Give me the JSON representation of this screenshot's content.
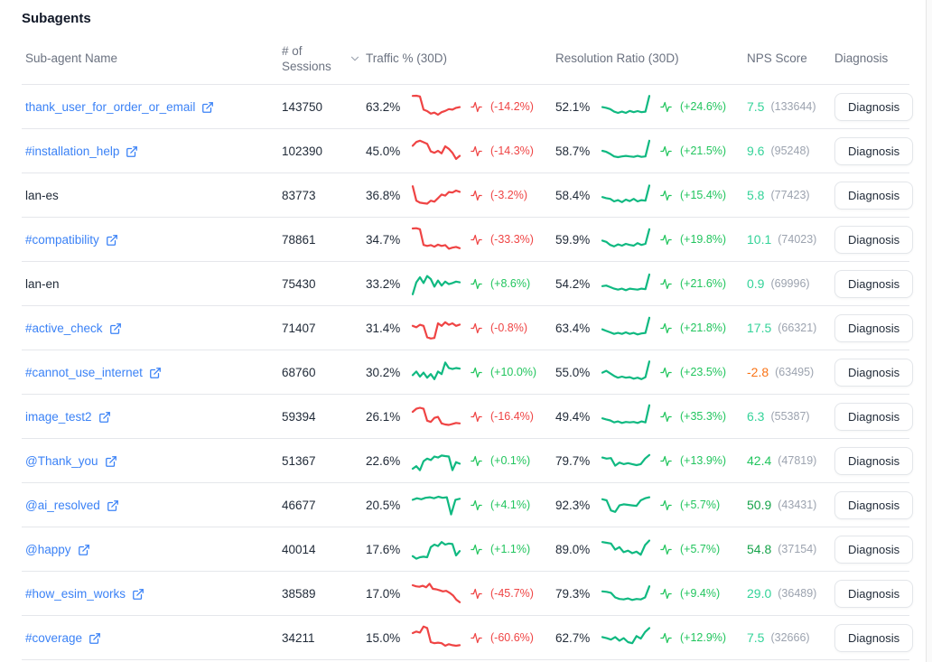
{
  "page": {
    "title": "Subagents"
  },
  "colors": {
    "link": "#3b82f6",
    "up": "#22c55e",
    "down": "#ef4444",
    "spark_up": "#10b981",
    "spark_down": "#ef4444",
    "nps_light_green": "#34d399",
    "nps_medium_green": "#22c55e",
    "nps_dark_green": "#16a34a",
    "nps_orange": "#f97316"
  },
  "table": {
    "headers": {
      "name": "Sub-agent Name",
      "sessions": "# of Sessions",
      "traffic": "Traffic % (30D)",
      "resolution": "Resolution Ratio (30D)",
      "nps": "NPS Score",
      "diagnosis": "Diagnosis"
    },
    "diagnosis_button_label": "Diagnosis",
    "rows": [
      {
        "name": "thank_user_for_order_or_email",
        "linked": true,
        "sessions": "143750",
        "traffic": {
          "value": "63.2%",
          "delta": "(-14.2%)",
          "trend": "down",
          "spark": [
            92,
            93,
            90,
            38,
            32,
            22,
            26,
            18,
            28,
            33,
            40,
            38,
            45,
            48
          ]
        },
        "resolution": {
          "value": "52.1%",
          "delta": "(+24.6%)",
          "trend": "up",
          "spark": [
            48,
            45,
            40,
            30,
            25,
            30,
            25,
            33,
            28,
            32,
            28,
            30,
            92
          ]
        },
        "nps": {
          "score": "7.5",
          "count": "(133644)",
          "color": "#34d399"
        }
      },
      {
        "name": "#installation_help",
        "linked": true,
        "sessions": "102390",
        "traffic": {
          "value": "45.0%",
          "delta": "(-14.3%)",
          "trend": "down",
          "spark": [
            70,
            85,
            90,
            84,
            78,
            48,
            42,
            50,
            40,
            68,
            58,
            42,
            18,
            30
          ]
        },
        "resolution": {
          "value": "58.7%",
          "delta": "(+21.5%)",
          "trend": "up",
          "spark": [
            50,
            46,
            38,
            28,
            25,
            28,
            30,
            28,
            26,
            30,
            26,
            28,
            90
          ]
        },
        "nps": {
          "score": "9.6",
          "count": "(95248)",
          "color": "#34d399"
        }
      },
      {
        "name": "lan-es",
        "linked": false,
        "sessions": "83773",
        "traffic": {
          "value": "36.8%",
          "delta": "(-3.2%)",
          "trend": "down",
          "spark": [
            85,
            28,
            20,
            18,
            16,
            28,
            24,
            38,
            52,
            48,
            62,
            60,
            68,
            63
          ]
        },
        "resolution": {
          "value": "58.4%",
          "delta": "(+15.4%)",
          "trend": "up",
          "spark": [
            42,
            38,
            35,
            25,
            30,
            22,
            32,
            26,
            35,
            25,
            30,
            28,
            88
          ]
        },
        "nps": {
          "score": "5.8",
          "count": "(77423)",
          "color": "#34d399"
        }
      },
      {
        "name": "#compatibility",
        "linked": true,
        "sessions": "78861",
        "traffic": {
          "value": "34.7%",
          "delta": "(-33.3%)",
          "trend": "down",
          "spark": [
            93,
            94,
            90,
            28,
            24,
            27,
            21,
            29,
            24,
            27,
            13,
            17,
            20,
            15
          ]
        },
        "resolution": {
          "value": "59.9%",
          "delta": "(+19.8%)",
          "trend": "up",
          "spark": [
            45,
            40,
            28,
            22,
            30,
            25,
            32,
            28,
            25,
            35,
            28,
            32,
            90
          ]
        },
        "nps": {
          "score": "10.1",
          "count": "(74023)",
          "color": "#34d399"
        }
      },
      {
        "name": "lan-en",
        "linked": false,
        "sessions": "75430",
        "traffic": {
          "value": "33.2%",
          "delta": "(+8.6%)",
          "trend": "up",
          "spark": [
            8,
            55,
            75,
            52,
            80,
            68,
            38,
            62,
            42,
            58,
            48,
            52,
            58,
            55
          ]
        },
        "resolution": {
          "value": "54.2%",
          "delta": "(+21.6%)",
          "trend": "up",
          "spark": [
            40,
            42,
            36,
            30,
            26,
            30,
            24,
            30,
            28,
            26,
            30,
            28,
            86
          ]
        },
        "nps": {
          "score": "0.9",
          "count": "(69996)",
          "color": "#34d399"
        }
      },
      {
        "name": "#active_check",
        "linked": true,
        "sessions": "71407",
        "traffic": {
          "value": "31.4%",
          "delta": "(-0.8%)",
          "trend": "down",
          "spark": [
            58,
            52,
            62,
            58,
            13,
            8,
            10,
            68,
            58,
            72,
            62,
            68,
            58,
            63
          ]
        },
        "resolution": {
          "value": "63.4%",
          "delta": "(+21.8%)",
          "trend": "up",
          "spark": [
            44,
            38,
            32,
            26,
            30,
            26,
            32,
            26,
            30,
            24,
            28,
            30,
            90
          ]
        },
        "nps": {
          "score": "17.5",
          "count": "(66321)",
          "color": "#34d399"
        }
      },
      {
        "name": "#cannot_use_internet",
        "linked": true,
        "sessions": "68760",
        "traffic": {
          "value": "30.2%",
          "delta": "(+10.0%)",
          "trend": "up",
          "spark": [
            38,
            52,
            32,
            48,
            28,
            42,
            22,
            52,
            42,
            88,
            66,
            62,
            66,
            64
          ]
        },
        "resolution": {
          "value": "55.0%",
          "delta": "(+23.5%)",
          "trend": "up",
          "spark": [
            48,
            55,
            45,
            35,
            28,
            32,
            28,
            30,
            24,
            28,
            22,
            30,
            92
          ]
        },
        "nps": {
          "score": "-2.8",
          "count": "(63495)",
          "color": "#f97316"
        }
      },
      {
        "name": "image_test2",
        "linked": true,
        "sessions": "59394",
        "traffic": {
          "value": "26.1%",
          "delta": "(-16.4%)",
          "trend": "down",
          "spark": [
            68,
            80,
            84,
            80,
            33,
            28,
            44,
            48,
            22,
            18,
            16,
            20,
            24,
            22
          ]
        },
        "resolution": {
          "value": "49.4%",
          "delta": "(+35.3%)",
          "trend": "up",
          "spark": [
            42,
            38,
            34,
            26,
            30,
            24,
            28,
            26,
            28,
            24,
            30,
            26,
            94
          ]
        },
        "nps": {
          "score": "6.3",
          "count": "(55387)",
          "color": "#34d399"
        }
      },
      {
        "name": "@Thank_you",
        "linked": true,
        "sessions": "51367",
        "traffic": {
          "value": "22.6%",
          "delta": "(+0.1%)",
          "trend": "up",
          "spark": [
            18,
            28,
            12,
            48,
            58,
            52,
            66,
            62,
            70,
            68,
            66,
            12,
            44,
            38
          ]
        },
        "resolution": {
          "value": "79.7%",
          "delta": "(+13.9%)",
          "trend": "up",
          "spark": [
            62,
            58,
            60,
            30,
            42,
            36,
            40,
            36,
            32,
            36,
            58,
            72
          ]
        },
        "nps": {
          "score": "42.4",
          "count": "(47819)",
          "color": "#22c55e"
        }
      },
      {
        "name": "@ai_resolved",
        "linked": true,
        "sessions": "46677",
        "traffic": {
          "value": "20.5%",
          "delta": "(+4.1%)",
          "trend": "up",
          "spark": [
            70,
            76,
            72,
            78,
            80,
            76,
            82,
            78,
            80,
            12,
            70,
            74
          ]
        },
        "resolution": {
          "value": "92.3%",
          "delta": "(+5.7%)",
          "trend": "up",
          "spark": [
            72,
            68,
            28,
            22,
            48,
            52,
            50,
            48,
            46,
            68,
            76,
            80
          ]
        },
        "nps": {
          "score": "50.9",
          "count": "(43431)",
          "color": "#16a34a"
        }
      },
      {
        "name": "@happy",
        "linked": true,
        "sessions": "40014",
        "traffic": {
          "value": "17.6%",
          "delta": "(+1.1%)",
          "trend": "up",
          "spark": [
            22,
            12,
            18,
            20,
            18,
            58,
            68,
            62,
            78,
            68,
            72,
            70,
            25,
            42
          ]
        },
        "resolution": {
          "value": "89.0%",
          "delta": "(+5.7%)",
          "trend": "up",
          "spark": [
            78,
            75,
            72,
            48,
            58,
            38,
            44,
            34,
            40,
            28,
            66,
            84
          ]
        },
        "nps": {
          "score": "54.8",
          "count": "(37154)",
          "color": "#16a34a"
        }
      },
      {
        "name": "#how_esim_works",
        "linked": true,
        "sessions": "38589",
        "traffic": {
          "value": "17.0%",
          "delta": "(-45.7%)",
          "trend": "down",
          "spark": [
            82,
            78,
            76,
            80,
            74,
            88,
            68,
            66,
            62,
            58,
            60,
            52,
            42,
            25,
            15
          ]
        },
        "resolution": {
          "value": "79.3%",
          "delta": "(+9.4%)",
          "trend": "up",
          "spark": [
            58,
            56,
            52,
            34,
            28,
            26,
            30,
            24,
            28,
            26,
            34,
            78
          ]
        },
        "nps": {
          "score": "29.0",
          "count": "(36489)",
          "color": "#34d399"
        }
      },
      {
        "name": "#coverage",
        "linked": true,
        "sessions": "34211",
        "traffic": {
          "value": "15.0%",
          "delta": "(-60.6%)",
          "trend": "down",
          "spark": [
            68,
            74,
            70,
            94,
            88,
            32,
            28,
            30,
            28,
            18,
            24,
            20,
            18,
            20
          ]
        },
        "resolution": {
          "value": "62.7%",
          "delta": "(+12.9%)",
          "trend": "up",
          "spark": [
            52,
            48,
            42,
            52,
            38,
            48,
            32,
            28,
            56,
            46,
            72,
            88
          ]
        },
        "nps": {
          "score": "7.5",
          "count": "(32666)",
          "color": "#34d399"
        }
      }
    ]
  }
}
